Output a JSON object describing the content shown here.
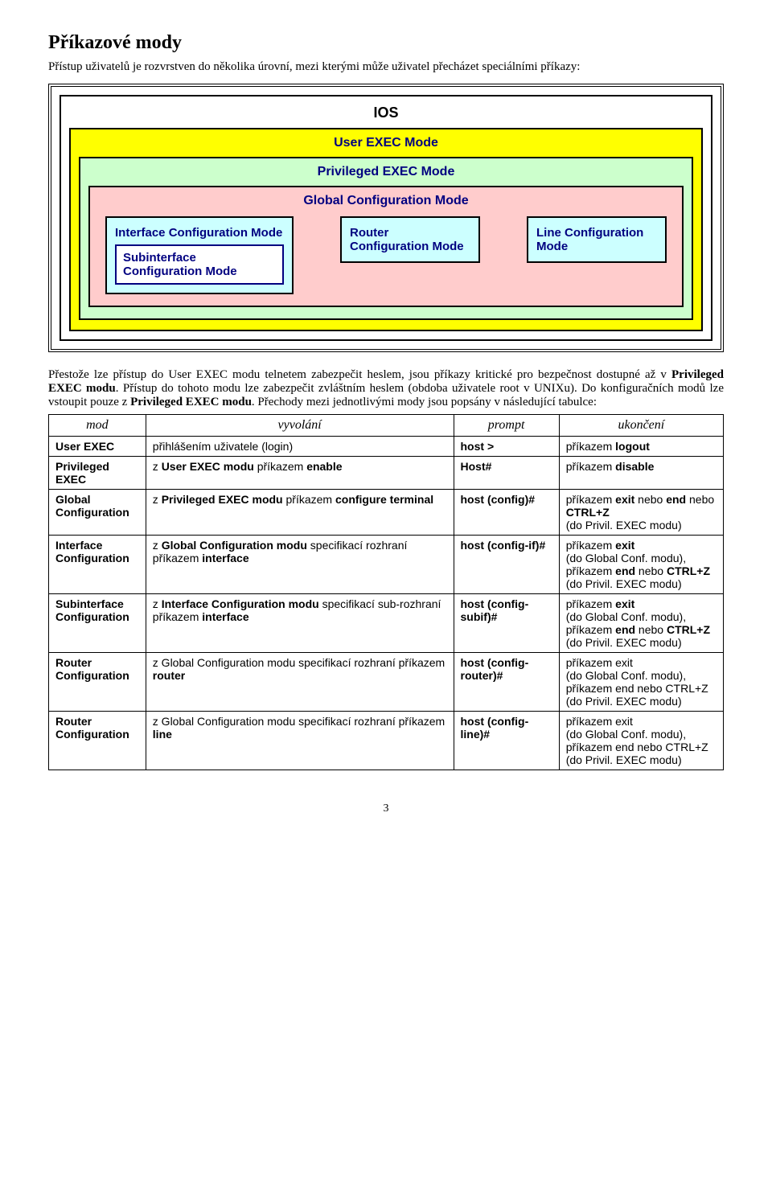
{
  "title": "Příkazové mody",
  "intro": "Přístup uživatelů je rozvrstven do několika úrovní, mezi kterými může uživatel přecházet speciálními příkazy:",
  "diagram": {
    "ios_label": "IOS",
    "user_exec_label": "User EXEC Mode",
    "priv_exec_label": "Privileged EXEC Mode",
    "global_label": "Global Configuration Mode",
    "iface_label": "Interface Configuration Mode",
    "subiface_label": "Subinterface Configuration Mode",
    "router_label": "Router Configuration Mode",
    "line_label": "Line Configuration Mode",
    "bg_yellow": "#ffff00",
    "bg_green": "#ccffcc",
    "bg_pink": "#ffcccc",
    "bg_cyan": "#ccffff",
    "text_navy": "#000080"
  },
  "paragraph": "Přestože lze přístup do User EXEC modu telnetem zabezpečit heslem, jsou příkazy kritické pro bezpečnost dostupné až v Privileged EXEC modu. Přístup do tohoto modu lze zabezpečit zvláštním heslem (obdoba uživatele root v UNIXu). Do konfiguračních modů lze vstoupit pouze z Privileged EXEC modu. Přechody mezi jednotlivými mody jsou popsány v následující tabulce:",
  "table": {
    "headers": [
      "mod",
      "vyvolání",
      "prompt",
      "ukončení"
    ],
    "rows": [
      {
        "mod": "User EXEC",
        "vyvolani": "přihlášením uživatele (login)",
        "prompt": "host >",
        "ukonceni": "příkazem logout"
      },
      {
        "mod": "Privileged EXEC",
        "vyvolani": "z User EXEC modu příkazem enable",
        "prompt": "Host#",
        "ukonceni": "příkazem disable"
      },
      {
        "mod": "Global Configuration",
        "vyvolani": "z Privileged EXEC modu příkazem configure terminal",
        "prompt": "host (config)#",
        "ukonceni": "příkazem exit nebo end nebo CTRL+Z (do Privil. EXEC modu)"
      },
      {
        "mod": "Interface Configuration",
        "vyvolani": "z Global Configuration modu specifikací rozhraní příkazem interface",
        "prompt": "host (config-if)#",
        "ukonceni": "příkazem exit (do Global Conf. modu), příkazem end nebo CTRL+Z (do Privil. EXEC modu)"
      },
      {
        "mod": "Subinterface Configuration",
        "vyvolani": "z Interface Configuration modu specifikací sub-rozhraní příkazem interface",
        "prompt": "host (config-subif)#",
        "ukonceni": "příkazem exit (do Global Conf. modu), příkazem end nebo CTRL+Z (do Privil. EXEC modu)"
      },
      {
        "mod": "Router Configuration",
        "vyvolani": "z Global Configuration modu specifikací rozhraní příkazem router",
        "prompt": "host (config-router)#",
        "ukonceni": "příkazem exit (do Global Conf. modu), příkazem end nebo CTRL+Z (do Privil. EXEC modu)"
      },
      {
        "mod": "Router Configuration",
        "vyvolani": "z Global Configuration modu specifikací rozhraní příkazem line",
        "prompt": "host (config-line)#",
        "ukonceni": "příkazem exit (do Global Conf. modu), příkazem end nebo CTRL+Z (do Privil. EXEC modu)"
      }
    ]
  },
  "page_number": "3"
}
